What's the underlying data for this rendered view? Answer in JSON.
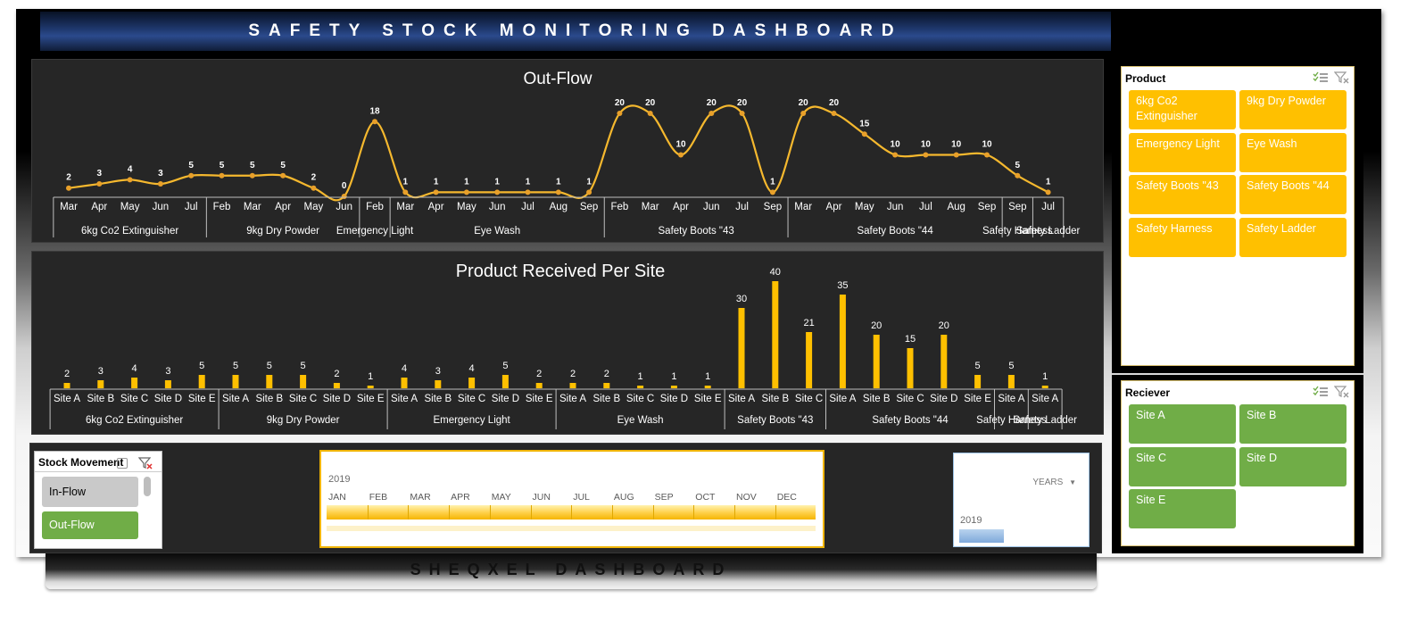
{
  "title": "SAFETY STOCK MONITORING DASHBOARD",
  "footer": "SHEQXEL DASHBOARD",
  "colors": {
    "accent": "#ffc000",
    "line": "#f5b82e",
    "panel": "#262626",
    "site": "#70ad47",
    "title_blue": "#2b4a8c"
  },
  "outflow": {
    "title": "Out-Flow",
    "chart_data": {
      "type": "line",
      "title": "Out-Flow",
      "points": [
        {
          "label": "Mar",
          "value": 2
        },
        {
          "label": "Apr",
          "value": 3
        },
        {
          "label": "May",
          "value": 4
        },
        {
          "label": "Jun",
          "value": 3
        },
        {
          "label": "Jul",
          "value": 5
        },
        {
          "label": "Feb",
          "value": 5
        },
        {
          "label": "Mar",
          "value": 5
        },
        {
          "label": "Apr",
          "value": 5
        },
        {
          "label": "May",
          "value": 2
        },
        {
          "label": "Jun",
          "value": 0
        },
        {
          "label": "Feb",
          "value": 18
        },
        {
          "label": "Mar",
          "value": 1
        },
        {
          "label": "Apr",
          "value": 1
        },
        {
          "label": "May",
          "value": 1
        },
        {
          "label": "Jun",
          "value": 1
        },
        {
          "label": "Jul",
          "value": 1
        },
        {
          "label": "Aug",
          "value": 1
        },
        {
          "label": "Sep",
          "value": 1
        },
        {
          "label": "Feb",
          "value": 20
        },
        {
          "label": "Mar",
          "value": 20
        },
        {
          "label": "Apr",
          "value": 10
        },
        {
          "label": "Jun",
          "value": 20
        },
        {
          "label": "Jul",
          "value": 20
        },
        {
          "label": "Sep",
          "value": 1
        },
        {
          "label": "Mar",
          "value": 20
        },
        {
          "label": "Apr",
          "value": 20
        },
        {
          "label": "May",
          "value": 15
        },
        {
          "label": "Jun",
          "value": 10
        },
        {
          "label": "Jul",
          "value": 10
        },
        {
          "label": "Aug",
          "value": 10
        },
        {
          "label": "Sep",
          "value": 10
        },
        {
          "label": "Sep",
          "value": 5
        },
        {
          "label": "Jul",
          "value": 1
        }
      ],
      "groups": [
        {
          "name": "6kg Co2 Extinguisher",
          "count": 5
        },
        {
          "name": "9kg Dry Powder",
          "count": 5
        },
        {
          "name": "Emergency Light",
          "count": 1
        },
        {
          "name": "Eye Wash",
          "count": 7
        },
        {
          "name": "Safety Boots \"43",
          "count": 6
        },
        {
          "name": "Safety Boots \"44",
          "count": 7
        },
        {
          "name": "Safety Harness",
          "count": 1
        },
        {
          "name": "Safety Ladder",
          "count": 1
        }
      ]
    }
  },
  "received": {
    "title": "Product Received Per Site",
    "chart_data": {
      "type": "bar",
      "title": "Product Received Per Site",
      "bars": [
        {
          "label": "Site A",
          "value": 2
        },
        {
          "label": "Site B",
          "value": 3
        },
        {
          "label": "Site C",
          "value": 4
        },
        {
          "label": "Site D",
          "value": 3
        },
        {
          "label": "Site E",
          "value": 5
        },
        {
          "label": "Site A",
          "value": 5
        },
        {
          "label": "Site B",
          "value": 5
        },
        {
          "label": "Site C",
          "value": 5
        },
        {
          "label": "Site D",
          "value": 2
        },
        {
          "label": "Site E",
          "value": 1
        },
        {
          "label": "Site A",
          "value": 4
        },
        {
          "label": "Site B",
          "value": 3
        },
        {
          "label": "Site C",
          "value": 4
        },
        {
          "label": "Site D",
          "value": 5
        },
        {
          "label": "Site E",
          "value": 2
        },
        {
          "label": "Site A",
          "value": 2
        },
        {
          "label": "Site B",
          "value": 2
        },
        {
          "label": "Site C",
          "value": 1
        },
        {
          "label": "Site D",
          "value": 1
        },
        {
          "label": "Site E",
          "value": 1
        },
        {
          "label": "Site A",
          "value": 30
        },
        {
          "label": "Site B",
          "value": 40
        },
        {
          "label": "Site C",
          "value": 21
        },
        {
          "label": "Site A",
          "value": 35
        },
        {
          "label": "Site B",
          "value": 20
        },
        {
          "label": "Site C",
          "value": 15
        },
        {
          "label": "Site D",
          "value": 20
        },
        {
          "label": "Site E",
          "value": 5
        },
        {
          "label": "Site A",
          "value": 5
        },
        {
          "label": "Site A",
          "value": 1
        }
      ],
      "groups": [
        {
          "name": "6kg Co2 Extinguisher",
          "count": 5
        },
        {
          "name": "9kg Dry Powder",
          "count": 5
        },
        {
          "name": "Emergency Light",
          "count": 5
        },
        {
          "name": "Eye Wash",
          "count": 5
        },
        {
          "name": "Safety Boots \"43",
          "count": 3
        },
        {
          "name": "Safety Boots \"44",
          "count": 5
        },
        {
          "name": "Safety Harness",
          "count": 1
        },
        {
          "name": "Safety Ladder",
          "count": 1
        }
      ]
    }
  },
  "product_slicer": {
    "header": "Product",
    "items": [
      "6kg Co2 Extinguisher",
      "9kg Dry Powder",
      "Emergency Light",
      "Eye Wash",
      "Safety Boots \"43",
      "Safety Boots \"44",
      "Safety Harness",
      "Safety Ladder"
    ]
  },
  "receiver_slicer": {
    "header": "Reciever",
    "items": [
      "Site A",
      "Site B",
      "Site C",
      "Site D",
      "Site E"
    ]
  },
  "stock_movement": {
    "header": "Stock Movement",
    "items": [
      "In-Flow",
      "Out-Flow"
    ],
    "selected": "Out-Flow"
  },
  "timeline": {
    "year": "2019",
    "months": [
      "JAN",
      "FEB",
      "MAR",
      "APR",
      "MAY",
      "JUN",
      "JUL",
      "AUG",
      "SEP",
      "OCT",
      "NOV",
      "DEC"
    ]
  },
  "years_box": {
    "label": "YEARS",
    "year": "2019"
  }
}
